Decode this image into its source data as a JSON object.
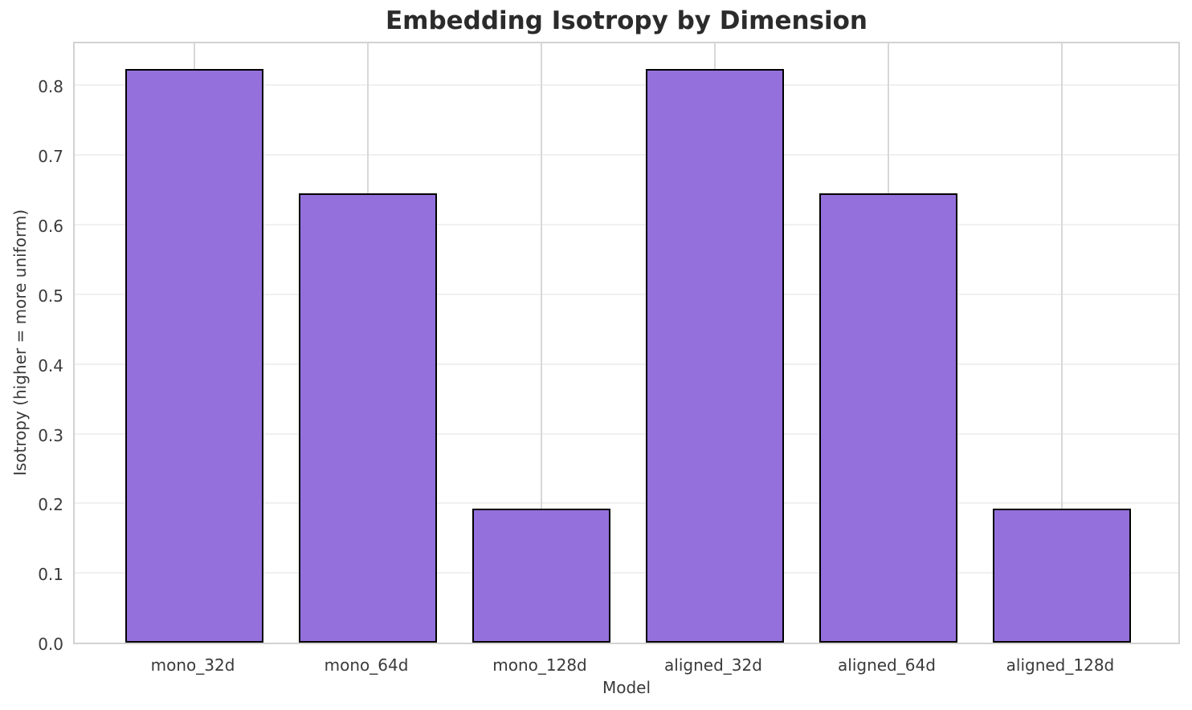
{
  "chart_data": {
    "type": "bar",
    "title": "Embedding Isotropy by Dimension",
    "xlabel": "Model",
    "ylabel": "Isotropy (higher = more uniform)",
    "categories": [
      "mono_32d",
      "mono_64d",
      "mono_128d",
      "aligned_32d",
      "aligned_64d",
      "aligned_128d"
    ],
    "values": [
      0.824,
      0.645,
      0.192,
      0.824,
      0.645,
      0.192
    ],
    "ylim": [
      0,
      0.865
    ],
    "yticks": [
      0.0,
      0.1,
      0.2,
      0.3,
      0.4,
      0.5,
      0.6,
      0.7,
      0.8
    ],
    "ytick_labels": [
      "0.0",
      "0.1",
      "0.2",
      "0.3",
      "0.4",
      "0.5",
      "0.6",
      "0.7",
      "0.8"
    ],
    "grid": true,
    "legend_position": "none",
    "bar_width_fraction": 0.8,
    "colors": {
      "bar_fill": "#9370DB",
      "bar_edge": "#000000",
      "grid_horizontal": "#f0f0f0",
      "grid_vertical": "#d8d8d8",
      "spine": "#d2d2d2",
      "tick_text": "#3a3a3a",
      "title_text": "#2b2b2b",
      "background": "#ffffff"
    }
  }
}
